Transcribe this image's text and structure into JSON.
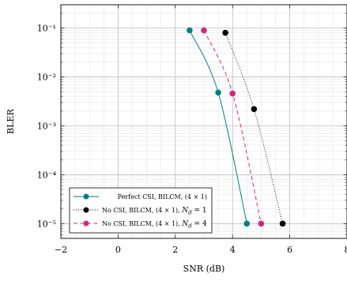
{
  "chart_data": {
    "type": "line",
    "title": "",
    "xlabel": "SNR (dB)",
    "ylabel": "BLER",
    "xlim": [
      -2,
      8
    ],
    "ylim": [
      5e-06,
      0.3
    ],
    "yscale": "log",
    "grid": true,
    "legend_position": "bottom-left",
    "xticks": [
      {
        "value": -2,
        "label": "−2"
      },
      {
        "value": 0,
        "label": "0"
      },
      {
        "value": 2,
        "label": "2"
      },
      {
        "value": 4,
        "label": "4"
      },
      {
        "value": 6,
        "label": "6"
      },
      {
        "value": 8,
        "label": "8"
      }
    ],
    "yticks": [
      {
        "value": 0.1,
        "label": "10⁻¹"
      },
      {
        "value": 0.01,
        "label": "10⁻²"
      },
      {
        "value": 0.001,
        "label": "10⁻³"
      },
      {
        "value": 0.0001,
        "label": "10⁻⁴"
      },
      {
        "value": 1e-05,
        "label": "10⁻⁵"
      }
    ],
    "series": [
      {
        "name": "Perfect CSI, BILCM, (4 × 1)",
        "color": "#008080",
        "line_style": "solid",
        "marker": "circle",
        "x": [
          2.5,
          3.5,
          4.5
        ],
        "y": [
          0.09,
          0.0048,
          1e-05
        ]
      },
      {
        "name": "No CSI, BILCM, (4 × 1), N_d = 1",
        "color": "#000000",
        "line_style": "dotted",
        "marker": "circle",
        "x": [
          3.75,
          4.75,
          5.75
        ],
        "y": [
          0.08,
          0.0022,
          1e-05
        ]
      },
      {
        "name": "No CSI, BILCM, (4 × 1), N_d = 4",
        "color": "#d6257f",
        "line_style": "dashed",
        "marker": "circle",
        "x": [
          3.0,
          4.0,
          5.0
        ],
        "y": [
          0.09,
          0.0046,
          1e-05
        ]
      }
    ]
  }
}
